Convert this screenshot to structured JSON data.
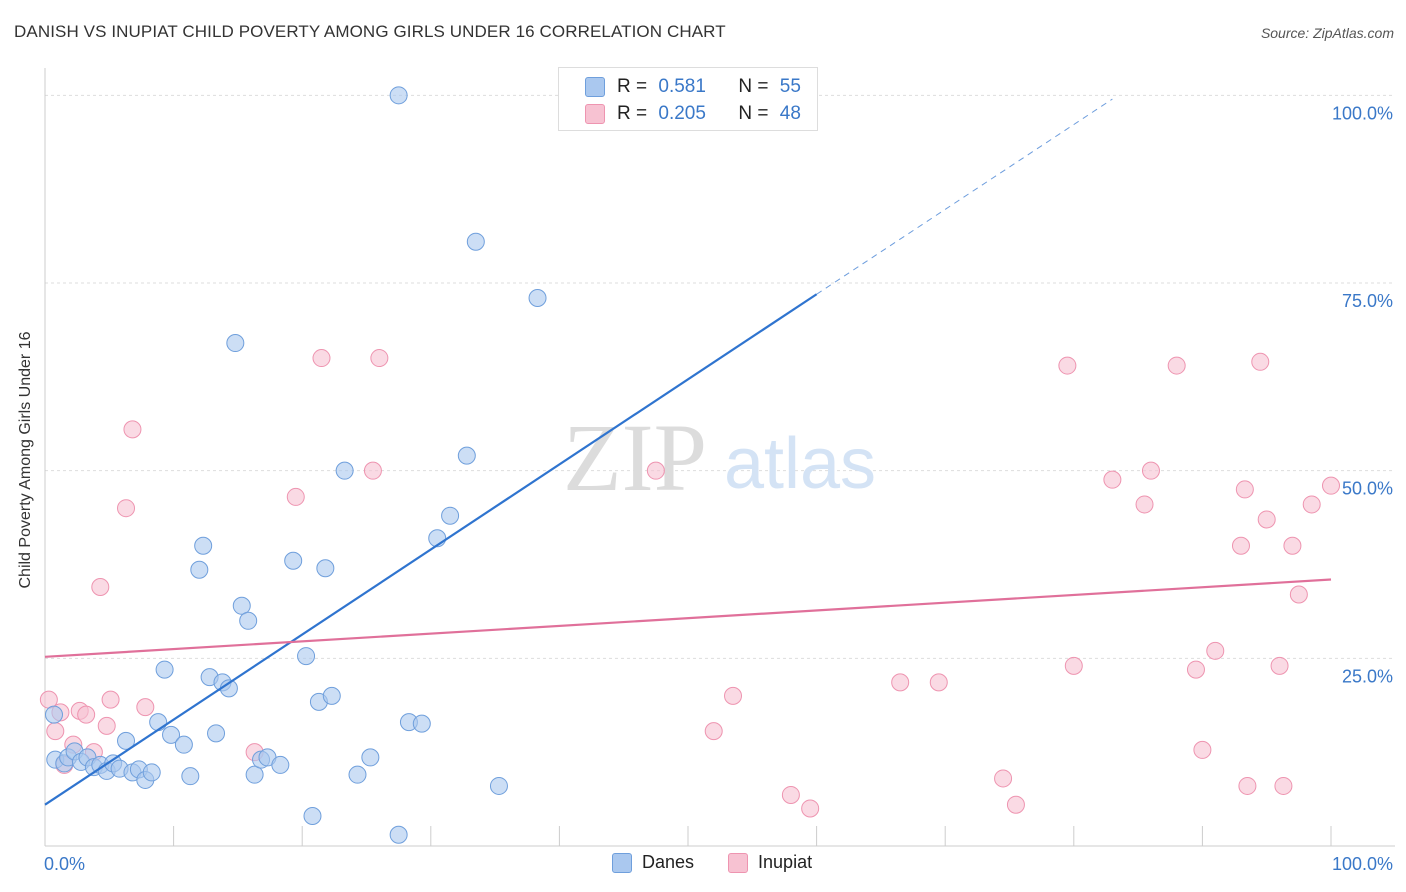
{
  "header": {
    "title": "DANISH VS INUPIAT CHILD POVERTY AMONG GIRLS UNDER 16 CORRELATION CHART",
    "source": "Source: ZipAtlas.com"
  },
  "watermark": {
    "zip": "ZIP",
    "atlas": "atlas"
  },
  "legend": {
    "danes": {
      "r_label": "R =",
      "r_value": "0.581",
      "n_label": "N =",
      "n_value": "55"
    },
    "inupiat": {
      "r_label": "R =",
      "r_value": "0.205",
      "n_label": "N =",
      "n_value": "48"
    }
  },
  "colors": {
    "danes_fill": "#aac8ef",
    "danes_stroke": "#6f9fdc",
    "danes_line": "#2f74cf",
    "inupiat_fill": "#f7c2d2",
    "inupiat_stroke": "#ee94b0",
    "inupiat_line": "#e0709a",
    "tick_label": "#3a78c8",
    "grid": "#dddddd"
  },
  "chart_data": {
    "type": "scatter",
    "title": "DANISH VS INUPIAT CHILD POVERTY AMONG GIRLS UNDER 16 CORRELATION CHART",
    "ylabel": "Child Poverty Among Girls Under 16",
    "xlabel": "",
    "xlim": [
      0,
      100
    ],
    "ylim": [
      0,
      100
    ],
    "x_tick_labels": [
      "0.0%",
      "100.0%"
    ],
    "y_tick_labels": [
      "25.0%",
      "50.0%",
      "75.0%",
      "100.0%"
    ],
    "y_ticks": [
      25,
      50,
      75,
      100
    ],
    "grid": true,
    "legend_position": "bottom",
    "series": [
      {
        "name": "Danes",
        "r": 0.581,
        "n": 55,
        "trend": {
          "x0": 0,
          "y0": 5.5,
          "x1": 60,
          "y1": 73.5,
          "dash_to_x": 83,
          "dash_to_y": 99.5
        },
        "points": [
          [
            0.7,
            17.5
          ],
          [
            0.8,
            11.5
          ],
          [
            1.5,
            11.0
          ],
          [
            1.8,
            11.8
          ],
          [
            2.3,
            12.6
          ],
          [
            2.8,
            11.2
          ],
          [
            3.3,
            11.8
          ],
          [
            3.8,
            10.5
          ],
          [
            4.3,
            10.8
          ],
          [
            4.8,
            10.0
          ],
          [
            5.3,
            11.0
          ],
          [
            5.8,
            10.3
          ],
          [
            6.3,
            14.0
          ],
          [
            6.8,
            9.8
          ],
          [
            7.3,
            10.2
          ],
          [
            7.8,
            8.8
          ],
          [
            8.3,
            9.8
          ],
          [
            8.8,
            16.5
          ],
          [
            9.3,
            23.5
          ],
          [
            9.8,
            14.8
          ],
          [
            10.8,
            13.5
          ],
          [
            11.3,
            9.3
          ],
          [
            12.3,
            40.0
          ],
          [
            12.8,
            22.5
          ],
          [
            13.3,
            15.0
          ],
          [
            13.8,
            21.8
          ],
          [
            14.3,
            21.0
          ],
          [
            14.8,
            67.0
          ],
          [
            15.3,
            32.0
          ],
          [
            15.8,
            30.0
          ],
          [
            16.3,
            9.5
          ],
          [
            16.8,
            11.5
          ],
          [
            17.3,
            11.8
          ],
          [
            18.3,
            10.8
          ],
          [
            19.3,
            38.0
          ],
          [
            20.3,
            25.3
          ],
          [
            20.8,
            4.0
          ],
          [
            21.3,
            19.2
          ],
          [
            21.8,
            37.0
          ],
          [
            22.3,
            20.0
          ],
          [
            23.3,
            50.0
          ],
          [
            24.3,
            9.5
          ],
          [
            25.3,
            11.8
          ],
          [
            27.5,
            1.5
          ],
          [
            28.3,
            16.5
          ],
          [
            29.3,
            16.3
          ],
          [
            30.5,
            41.0
          ],
          [
            31.5,
            44.0
          ],
          [
            32.8,
            52.0
          ],
          [
            33.5,
            80.5
          ],
          [
            35.3,
            8.0
          ],
          [
            38.3,
            73.0
          ],
          [
            12.0,
            36.8
          ],
          [
            27.5,
            100
          ],
          [
            53.5,
            100
          ]
        ]
      },
      {
        "name": "Inupiat",
        "r": 0.205,
        "n": 48,
        "trend": {
          "x0": 0,
          "y0": 25.2,
          "x1": 100,
          "y1": 35.5
        },
        "points": [
          [
            0.3,
            19.5
          ],
          [
            0.8,
            15.3
          ],
          [
            1.2,
            17.8
          ],
          [
            1.5,
            10.8
          ],
          [
            2.2,
            13.5
          ],
          [
            2.7,
            18.0
          ],
          [
            3.2,
            17.5
          ],
          [
            3.8,
            12.5
          ],
          [
            4.3,
            34.5
          ],
          [
            4.8,
            16.0
          ],
          [
            5.1,
            19.5
          ],
          [
            6.3,
            45.0
          ],
          [
            6.8,
            55.5
          ],
          [
            7.8,
            18.5
          ],
          [
            16.3,
            12.5
          ],
          [
            19.5,
            46.5
          ],
          [
            21.5,
            65.0
          ],
          [
            25.5,
            50.0
          ],
          [
            26.0,
            65.0
          ],
          [
            47.5,
            50.0
          ],
          [
            52.0,
            15.3
          ],
          [
            53.5,
            20.0
          ],
          [
            58.0,
            6.8
          ],
          [
            59.5,
            5.0
          ],
          [
            66.5,
            21.8
          ],
          [
            69.5,
            21.8
          ],
          [
            74.5,
            9.0
          ],
          [
            75.5,
            5.5
          ],
          [
            79.5,
            64.0
          ],
          [
            80.0,
            24.0
          ],
          [
            83.0,
            48.8
          ],
          [
            85.5,
            45.5
          ],
          [
            86.0,
            50.0
          ],
          [
            88.0,
            64.0
          ],
          [
            89.5,
            23.5
          ],
          [
            90.0,
            12.8
          ],
          [
            91.0,
            26.0
          ],
          [
            93.0,
            40.0
          ],
          [
            93.3,
            47.5
          ],
          [
            93.5,
            8.0
          ],
          [
            94.5,
            64.5
          ],
          [
            95.0,
            43.5
          ],
          [
            96.0,
            24.0
          ],
          [
            96.3,
            8.0
          ],
          [
            97.0,
            40.0
          ],
          [
            97.5,
            33.5
          ],
          [
            98.5,
            45.5
          ],
          [
            100.0,
            48.0
          ]
        ]
      }
    ]
  }
}
